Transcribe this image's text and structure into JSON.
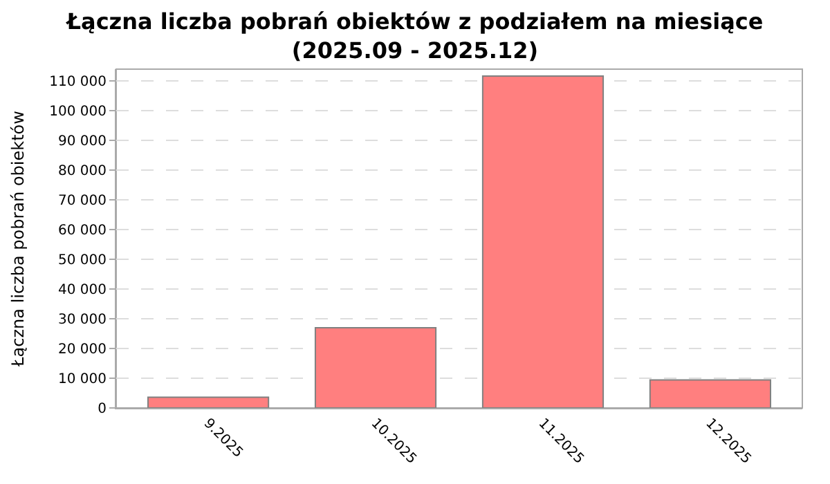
{
  "chart_data": {
    "type": "bar",
    "title": "Łączna liczba pobrań obiektów z podziałem na miesiące\n(2025.09 - 2025.12)",
    "ylabel": "Łączna liczba pobrań obiektów",
    "categories": [
      "9.2025",
      "10.2025",
      "11.2025",
      "12.2025"
    ],
    "values": [
      3600,
      27000,
      111700,
      9400
    ],
    "color": "#ff7f7f",
    "ylim": [
      0,
      114000
    ],
    "yticks": [
      0,
      {
        "value": 10000,
        "label": "10 000"
      },
      {
        "value": 20000,
        "label": "20 000"
      },
      {
        "value": 30000,
        "label": "30 000"
      },
      {
        "value": 40000,
        "label": "40 000"
      },
      {
        "value": 50000,
        "label": "50 000"
      },
      {
        "value": 60000,
        "label": "60 000"
      },
      {
        "value": 70000,
        "label": "70 000"
      },
      {
        "value": 80000,
        "label": "80 000"
      },
      {
        "value": 90000,
        "label": "90 000"
      },
      {
        "value": 100000,
        "label": "100 000"
      },
      {
        "value": 110000,
        "label": "110 000"
      }
    ],
    "grid": "y"
  }
}
